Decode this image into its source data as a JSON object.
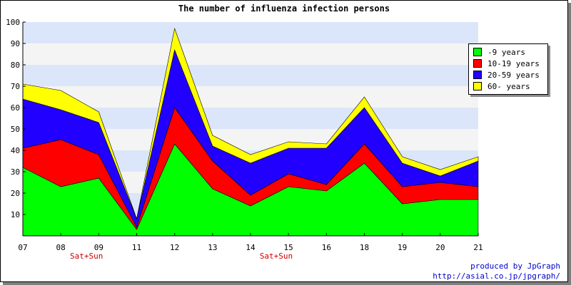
{
  "chart_data": {
    "type": "area",
    "stacked": true,
    "title": "The number of influenza infection persons",
    "categories": [
      "07",
      "08",
      "09",
      "11",
      "12",
      "13",
      "14",
      "15",
      "16",
      "18",
      "19",
      "20",
      "21"
    ],
    "category_annotations": [
      {
        "category": "08",
        "label": "Sat+Sun"
      },
      {
        "category": "14",
        "label": "Sat+Sun"
      }
    ],
    "ylim": [
      0,
      100
    ],
    "yticks": [
      10,
      20,
      30,
      40,
      50,
      60,
      70,
      80,
      90,
      100
    ],
    "grid": "horizontal bands",
    "legend": "top-right",
    "series": [
      {
        "name": "-9 years",
        "color": "#00ff00",
        "values": [
          32,
          23,
          27,
          3,
          43,
          22,
          14,
          23,
          21,
          34,
          15,
          17,
          17
        ]
      },
      {
        "name": "10-19 years",
        "color": "#ff0000",
        "values": [
          9,
          22,
          11,
          1,
          17,
          13,
          5,
          6,
          3,
          9,
          8,
          8,
          6
        ]
      },
      {
        "name": "20-59 years",
        "color": "#2200ff",
        "values": [
          23,
          14,
          15,
          4,
          27,
          7,
          15,
          12,
          17,
          17,
          11,
          3,
          12
        ]
      },
      {
        "name": "60- years",
        "color": "#ffff00",
        "values": [
          7,
          9,
          5,
          0,
          10,
          5,
          4,
          3,
          2,
          5,
          3,
          3,
          2
        ]
      }
    ]
  },
  "credit": {
    "line1": "produced by JpGraph",
    "line2": "http://asial.co.jp/jpgraph/"
  },
  "colors": {
    "band_blue": "#dce6fa",
    "band_gray": "#f4f4f4",
    "annotation": "#cc0000"
  }
}
